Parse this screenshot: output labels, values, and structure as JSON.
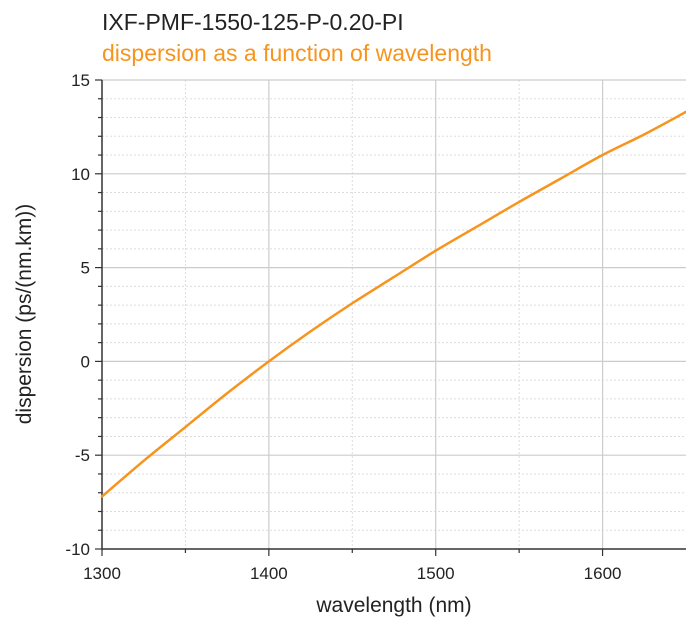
{
  "chart_data": {
    "type": "line",
    "title": "IXF-PMF-1550-125-P-0.20-PI",
    "subtitle": "dispersion as a function of wavelength",
    "xlabel": "wavelength (nm)",
    "ylabel": "dispersion (ps/(nm.km))",
    "xlim": [
      1300,
      1650
    ],
    "ylim": [
      -10,
      15
    ],
    "xticks": [
      1300,
      1400,
      1500,
      1600
    ],
    "yticks": [
      -10,
      -5,
      0,
      5,
      10,
      15
    ],
    "xtick_labels": [
      "1300",
      "1400",
      "1500",
      "1600"
    ],
    "ytick_labels": [
      "-10",
      "-5",
      "0",
      "5",
      "10",
      "15"
    ],
    "x_minor_grid": [
      1350,
      1450,
      1550
    ],
    "y_minor_grid_step": 1,
    "grid": true,
    "series": [
      {
        "color": "#f7941d",
        "x": [
          1300,
          1325,
          1350,
          1375,
          1400,
          1425,
          1450,
          1475,
          1500,
          1525,
          1550,
          1575,
          1600,
          1625,
          1650
        ],
        "values": [
          -7.2,
          -5.3,
          -3.5,
          -1.7,
          0.0,
          1.6,
          3.1,
          4.5,
          5.9,
          7.2,
          8.5,
          9.75,
          11.0,
          12.1,
          13.3
        ]
      }
    ]
  },
  "colors": {
    "title": "#222222",
    "subtitle": "#f7941d",
    "major_grid": "#cccccc",
    "minor_grid": "#dddddd",
    "axis": "#333333"
  }
}
